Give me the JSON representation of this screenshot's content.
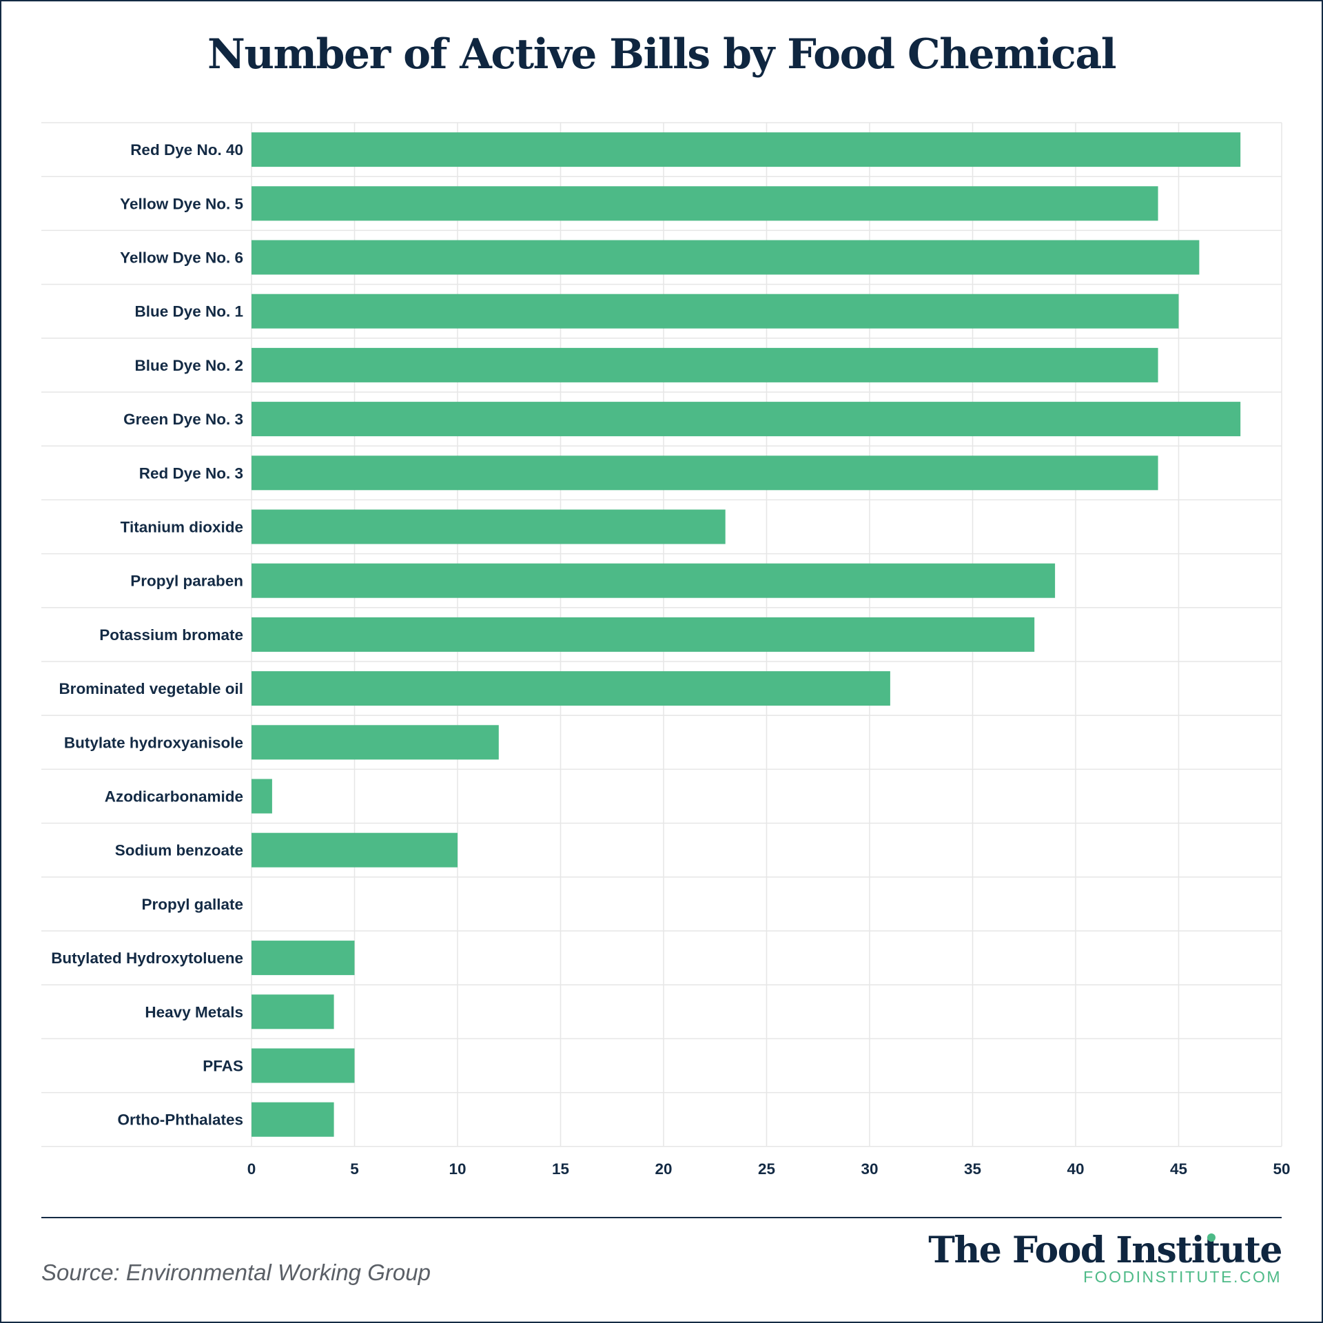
{
  "header": {
    "title": "Number of Active Bills by Food Chemical"
  },
  "chart_data": {
    "type": "bar",
    "orientation": "horizontal",
    "title": "Number of Active Bills by Food Chemical",
    "xlabel": "",
    "ylabel": "",
    "xlim": [
      0,
      50
    ],
    "xticks": [
      0,
      5,
      10,
      15,
      20,
      25,
      30,
      35,
      40,
      45,
      50
    ],
    "grid": true,
    "bar_color": "#4dba87",
    "categories": [
      "Red Dye No. 40",
      "Yellow Dye No. 5",
      "Yellow Dye No. 6",
      "Blue Dye No. 1",
      "Blue Dye No. 2",
      "Green Dye No. 3",
      "Red Dye No. 3",
      "Titanium dioxide",
      "Propyl paraben",
      "Potassium bromate",
      "Brominated vegetable oil",
      "Butylate hydroxyanisole",
      "Azodicarbonamide",
      "Sodium benzoate",
      "Propyl gallate",
      "Butylated Hydroxytoluene",
      "Heavy Metals",
      "PFAS",
      "Ortho-Phthalates"
    ],
    "values": [
      48,
      44,
      46,
      45,
      44,
      48,
      44,
      23,
      39,
      38,
      31,
      12,
      1,
      10,
      0,
      5,
      4,
      5,
      4
    ]
  },
  "footer": {
    "source": "Source: Environmental Working Group",
    "brand_name": "The Food Institute",
    "brand_url": "FOODINSTITUTE.COM"
  }
}
